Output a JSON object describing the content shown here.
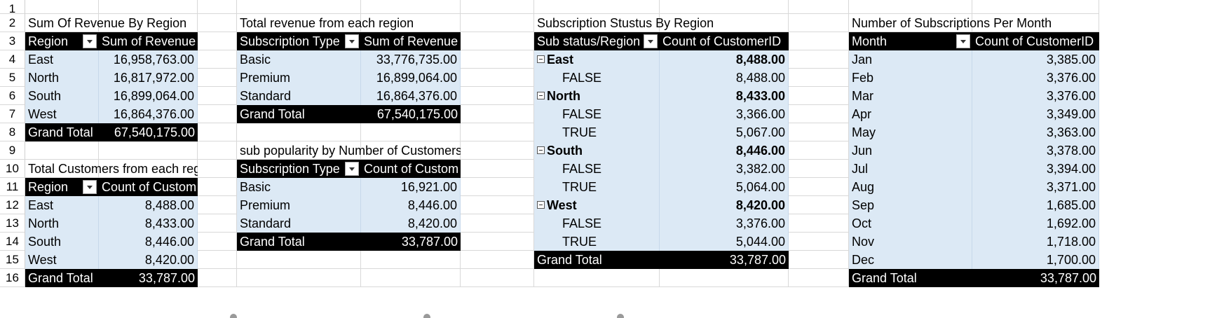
{
  "row_numbers": [
    "1",
    "2",
    "3",
    "4",
    "5",
    "6",
    "7",
    "8",
    "9",
    "10",
    "11",
    "12",
    "13",
    "14",
    "15",
    "16"
  ],
  "pivot_revenue_region": {
    "title": "Sum Of Revenue By Region",
    "header": [
      "Region",
      "Sum of Revenue"
    ],
    "rows": [
      {
        "label": "East",
        "value": "16,958,763.00"
      },
      {
        "label": "North",
        "value": "16,817,972.00"
      },
      {
        "label": "South",
        "value": "16,899,064.00"
      },
      {
        "label": "West",
        "value": "16,864,376.00"
      }
    ],
    "total": {
      "label": "Grand Total",
      "value": "67,540,175.00"
    }
  },
  "pivot_customers_region": {
    "title": "Total Customers from each region",
    "header": [
      "Region",
      "Count of Custom"
    ],
    "rows": [
      {
        "label": "East",
        "value": "8,488.00"
      },
      {
        "label": "North",
        "value": "8,433.00"
      },
      {
        "label": "South",
        "value": "8,446.00"
      },
      {
        "label": "West",
        "value": "8,420.00"
      }
    ],
    "total": {
      "label": "Grand Total",
      "value": "33,787.00"
    }
  },
  "pivot_revenue_subtype": {
    "title": "Total revenue from each region",
    "header": [
      "Subscription Type",
      "Sum of Revenue"
    ],
    "rows": [
      {
        "label": "Basic",
        "value": "33,776,735.00"
      },
      {
        "label": "Premium",
        "value": "16,899,064.00"
      },
      {
        "label": "Standard",
        "value": "16,864,376.00"
      }
    ],
    "total": {
      "label": "Grand Total",
      "value": "67,540,175.00"
    }
  },
  "pivot_popularity": {
    "title": "sub popularity by Number of Customers",
    "header": [
      "Subscription Type",
      "Count of Custom"
    ],
    "rows": [
      {
        "label": "Basic",
        "value": "16,921.00"
      },
      {
        "label": "Premium",
        "value": "8,446.00"
      },
      {
        "label": "Standard",
        "value": "8,420.00"
      }
    ],
    "total": {
      "label": "Grand Total",
      "value": "33,787.00"
    }
  },
  "pivot_status_region": {
    "title": "Subscription Stustus By Region",
    "header": [
      "Sub status/Region",
      "Count of CustomerID"
    ],
    "groups": [
      {
        "label": "East",
        "value": "8,488.00",
        "children": [
          {
            "label": "FALSE",
            "value": "8,488.00"
          }
        ]
      },
      {
        "label": "North",
        "value": "8,433.00",
        "children": [
          {
            "label": "FALSE",
            "value": "3,366.00"
          },
          {
            "label": "TRUE",
            "value": "5,067.00"
          }
        ]
      },
      {
        "label": "South",
        "value": "8,446.00",
        "children": [
          {
            "label": "FALSE",
            "value": "3,382.00"
          },
          {
            "label": "TRUE",
            "value": "5,064.00"
          }
        ]
      },
      {
        "label": "West",
        "value": "8,420.00",
        "children": [
          {
            "label": "FALSE",
            "value": "3,376.00"
          },
          {
            "label": "TRUE",
            "value": "5,044.00"
          }
        ]
      }
    ],
    "total": {
      "label": "Grand Total",
      "value": "33,787.00"
    }
  },
  "pivot_month": {
    "title": "Number of Subscriptions Per Month",
    "header": [
      "Month",
      "Count of CustomerID"
    ],
    "rows": [
      {
        "label": "Jan",
        "value": "3,385.00"
      },
      {
        "label": "Feb",
        "value": "3,376.00"
      },
      {
        "label": "Mar",
        "value": "3,376.00"
      },
      {
        "label": "Apr",
        "value": "3,349.00"
      },
      {
        "label": "May",
        "value": "3,363.00"
      },
      {
        "label": "Jun",
        "value": "3,378.00"
      },
      {
        "label": "Jul",
        "value": "3,394.00"
      },
      {
        "label": "Aug",
        "value": "3,371.00"
      },
      {
        "label": "Sep",
        "value": "1,685.00"
      },
      {
        "label": "Oct",
        "value": "1,692.00"
      },
      {
        "label": "Nov",
        "value": "1,718.00"
      },
      {
        "label": "Dec",
        "value": "1,700.00"
      }
    ],
    "total": {
      "label": "Grand Total",
      "value": "33,787.00"
    }
  }
}
